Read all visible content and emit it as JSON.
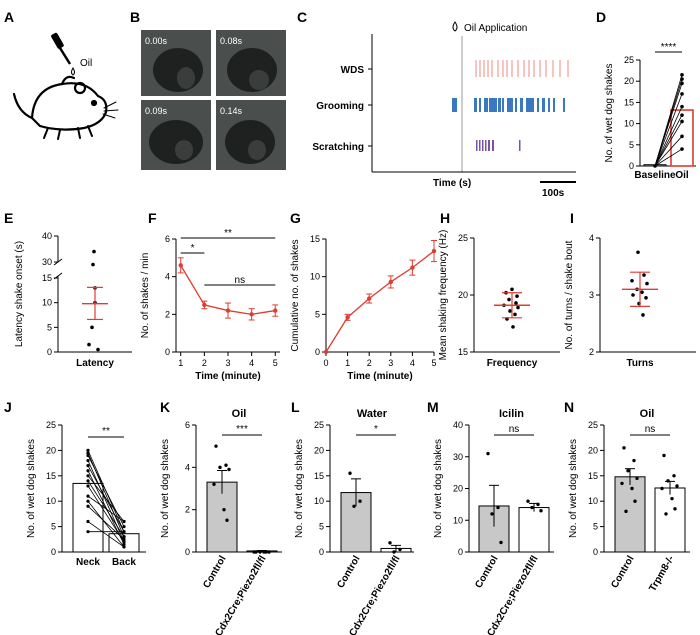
{
  "panels": {
    "A": {
      "letter": "A",
      "label_oil": "Oil"
    },
    "B": {
      "letter": "B",
      "frames": [
        "0.00s",
        "0.08s",
        "0.09s",
        "0.14s"
      ]
    },
    "C": {
      "letter": "C",
      "header": "Oil Application",
      "rows": [
        "WDS",
        "Grooming",
        "Scratching"
      ],
      "xlabel": "Time (s)",
      "scalebar": "100s"
    },
    "D": {
      "letter": "D"
    },
    "E": {
      "letter": "E"
    },
    "F": {
      "letter": "F"
    },
    "G": {
      "letter": "G"
    },
    "H": {
      "letter": "H"
    },
    "I": {
      "letter": "I"
    },
    "J": {
      "letter": "J"
    },
    "K": {
      "letter": "K"
    },
    "L": {
      "letter": "L"
    },
    "M": {
      "letter": "M"
    },
    "N": {
      "letter": "N"
    }
  },
  "colors": {
    "red": "#e03c31",
    "blue": "#3a78c2",
    "purple": "#7b52a8",
    "grey": "#c8c8c8",
    "pink": "#ef8a80"
  },
  "chart_data": [
    {
      "id": "D",
      "type": "bar",
      "title": "",
      "ylabel": "No. of wet dog shakes",
      "ylim": [
        0,
        25
      ],
      "yticks": [
        0,
        5,
        10,
        15,
        20,
        25
      ],
      "categories": [
        "Baseline",
        "Oil"
      ],
      "values": [
        0.3,
        13.2
      ],
      "significance": "****",
      "paired": [
        [
          0,
          21.5
        ],
        [
          0,
          20.5
        ],
        [
          0,
          19.5
        ],
        [
          0,
          17
        ],
        [
          0,
          14
        ],
        [
          0,
          12
        ],
        [
          0,
          10.5
        ],
        [
          0,
          7
        ],
        [
          0,
          4
        ]
      ]
    },
    {
      "id": "E",
      "type": "scatter",
      "title": "",
      "ylabel": "Latency shake onset (s)",
      "ylim": [
        0,
        40
      ],
      "yticks": [
        0,
        5,
        10,
        15,
        30,
        40
      ],
      "categories": [
        "Latency"
      ],
      "mean": 9.8,
      "sem": [
        6.6,
        13.1
      ],
      "points": [
        34,
        29,
        13,
        10,
        5,
        1.5,
        0.5
      ]
    },
    {
      "id": "F",
      "type": "line",
      "title": "",
      "ylabel": "No. of shakes / min",
      "xlabel": "Time (minute)",
      "ylim": [
        0,
        6
      ],
      "yticks": [
        0,
        2,
        4,
        6
      ],
      "x": [
        1,
        2,
        3,
        4,
        5
      ],
      "values": [
        4.6,
        2.5,
        2.2,
        2.0,
        2.2
      ],
      "err": [
        0.4,
        0.2,
        0.4,
        0.3,
        0.3
      ],
      "brackets": [
        {
          "from": 1,
          "to": 5,
          "label": "**"
        },
        {
          "from": 1,
          "to": 2,
          "label": "*"
        },
        {
          "from": 2,
          "to": 5,
          "label": "ns"
        }
      ]
    },
    {
      "id": "G",
      "type": "line",
      "title": "",
      "ylabel": "Cumulative no. of shakes",
      "xlabel": "Time (minute)",
      "ylim": [
        0,
        15
      ],
      "yticks": [
        0,
        5,
        10,
        15
      ],
      "x": [
        0,
        1,
        2,
        3,
        4,
        5
      ],
      "values": [
        0,
        4.6,
        7.1,
        9.3,
        11.2,
        13.4
      ],
      "err": [
        0,
        0.4,
        0.6,
        0.8,
        1.0,
        1.4
      ]
    },
    {
      "id": "H",
      "type": "scatter",
      "title": "",
      "ylabel": "Mean shaking frequency (Hz)",
      "ylim": [
        15,
        25
      ],
      "yticks": [
        15,
        20,
        25
      ],
      "categories": [
        "Frequency"
      ],
      "mean": 19.1,
      "sem": [
        18.0,
        20.2
      ],
      "points": [
        20.5,
        20.2,
        19.9,
        19.6,
        19.3,
        19.1,
        18.9,
        18.6,
        18.3,
        17.9,
        17.2
      ]
    },
    {
      "id": "I",
      "type": "scatter",
      "title": "",
      "ylabel": "No. of turns / shake bout",
      "ylim": [
        2,
        4
      ],
      "yticks": [
        2,
        3,
        4
      ],
      "categories": [
        "Turns"
      ],
      "mean": 3.1,
      "sem": [
        2.8,
        3.4
      ],
      "points": [
        3.75,
        3.35,
        3.25,
        3.2,
        3.1,
        3.05,
        3.0,
        2.95,
        2.85,
        2.65
      ]
    },
    {
      "id": "J",
      "type": "bar",
      "title": "",
      "ylabel": "No. of wet dog shakes",
      "ylim": [
        0,
        25
      ],
      "yticks": [
        0,
        5,
        10,
        15,
        20,
        25
      ],
      "categories": [
        "Neck",
        "Back"
      ],
      "values": [
        13.5,
        3.6
      ],
      "significance": "**",
      "paired": [
        [
          20,
          4
        ],
        [
          19.5,
          3
        ],
        [
          19,
          5
        ],
        [
          18,
          2
        ],
        [
          17,
          4
        ],
        [
          16,
          1.5
        ],
        [
          15,
          6
        ],
        [
          14,
          3
        ],
        [
          13,
          2
        ],
        [
          11,
          6
        ],
        [
          10,
          1
        ],
        [
          9,
          2.5
        ],
        [
          6,
          1
        ],
        [
          4,
          4
        ]
      ]
    },
    {
      "id": "K",
      "type": "bar",
      "title": "Oil",
      "ylabel": "No. of wet dog shakes",
      "ylim": [
        0,
        6
      ],
      "yticks": [
        0,
        2,
        4,
        6
      ],
      "categories": [
        "Control",
        "Cdx2Cre;Piezo2fl/fl"
      ],
      "values": [
        3.3,
        0.05
      ],
      "sem": [
        0.55,
        0.02
      ],
      "significance": "***",
      "points": [
        [
          5,
          4.1,
          4,
          3.9,
          3.2,
          2,
          1.5
        ],
        [
          0,
          0,
          0,
          0,
          0,
          0
        ]
      ]
    },
    {
      "id": "L",
      "type": "bar",
      "title": "Water",
      "ylabel": "No. of wet dog shakes",
      "ylim": [
        0,
        25
      ],
      "yticks": [
        0,
        5,
        10,
        15,
        20,
        25
      ],
      "categories": [
        "Control",
        "Cdx2Cre;Piezo2fl/fl"
      ],
      "values": [
        11.7,
        0.7
      ],
      "sem": [
        2.7,
        0.6
      ],
      "significance": "*",
      "points": [
        [
          15.5,
          10,
          9
        ],
        [
          1.8,
          0.5,
          0
        ]
      ]
    },
    {
      "id": "M",
      "type": "bar",
      "title": "Icilin",
      "ylabel": "No. of wet dog shakes",
      "ylim": [
        0,
        40
      ],
      "yticks": [
        0,
        10,
        20,
        30,
        40
      ],
      "categories": [
        "Control",
        "Cdx2Cre;Piezo2fl/fl"
      ],
      "values": [
        14.5,
        14.0
      ],
      "sem": [
        6.5,
        1.3
      ],
      "significance": "ns",
      "points": [
        [
          31,
          14,
          12,
          3
        ],
        [
          16,
          15,
          14,
          13
        ]
      ]
    },
    {
      "id": "N",
      "type": "bar",
      "title": "Oil",
      "ylabel": "No. of wet dog shakes",
      "ylim": [
        0,
        25
      ],
      "yticks": [
        0,
        5,
        10,
        15,
        20,
        25
      ],
      "categories": [
        "Control",
        "Trpm8-/-"
      ],
      "values": [
        14.8,
        12.6
      ],
      "sem": [
        1.6,
        1.3
      ],
      "significance": "ns",
      "points": [
        [
          20.5,
          18,
          16,
          14.5,
          13.5,
          12.5,
          10,
          8
        ],
        [
          19,
          15,
          14,
          13,
          12.5,
          10.5,
          8.5,
          7.5
        ]
      ]
    }
  ]
}
